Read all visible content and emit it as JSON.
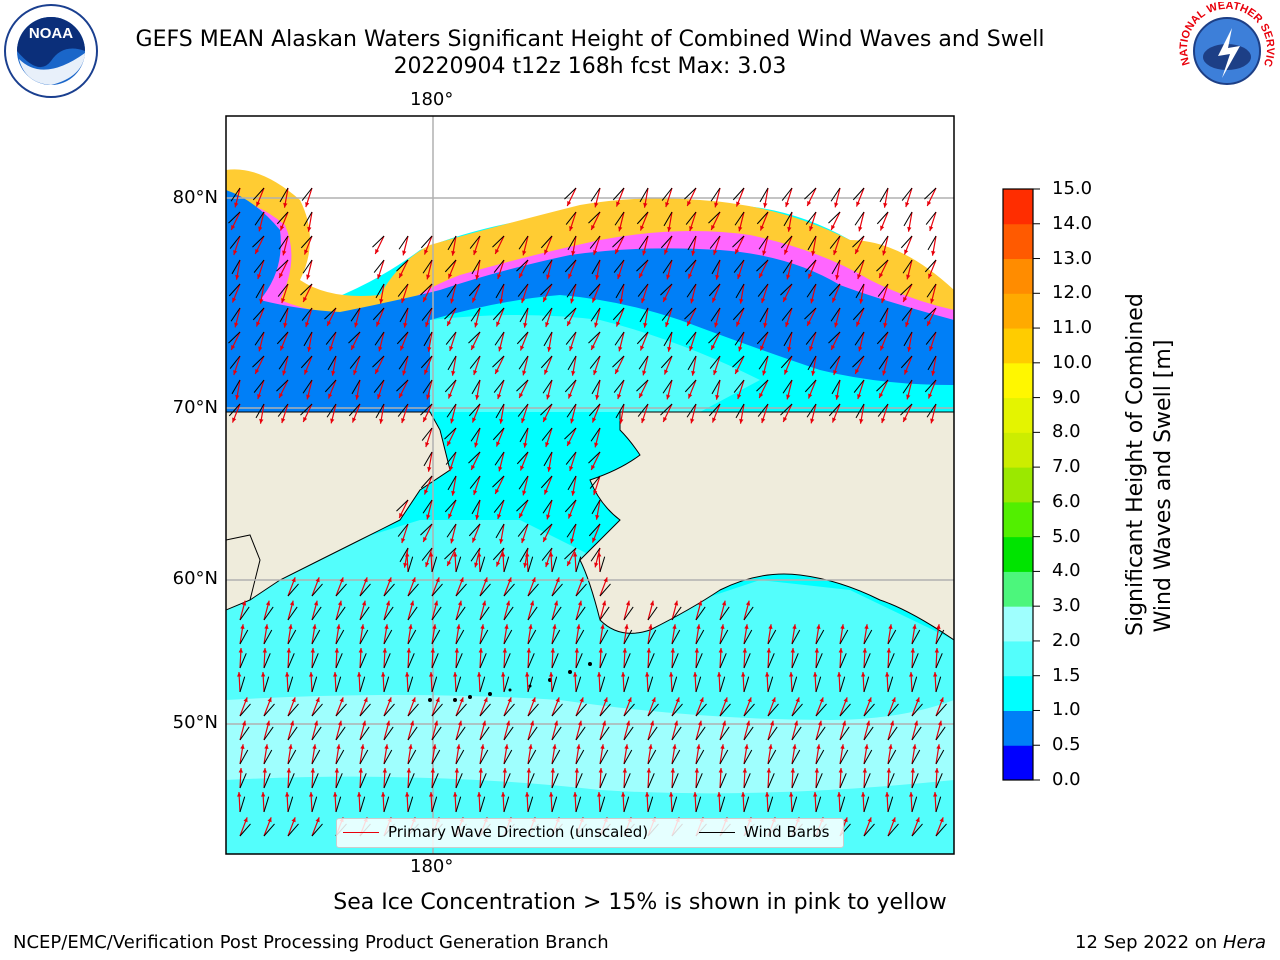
{
  "title": {
    "line1": "GEFS MEAN Alaskan Waters Significant Height of Combined Wind Waves and Swell",
    "line2": "20220904 t12z 168h fcst   Max: 3.03"
  },
  "logos": {
    "noaa_text": "NOAA",
    "nws_text": "NATIONAL WEATHER SERVICE"
  },
  "map": {
    "lon_label_top": "180°",
    "lon_label_bottom": "180°",
    "lat_labels": [
      "80°N",
      "70°N",
      "60°N",
      "50°N"
    ],
    "colors": {
      "land": "#efecdc",
      "ocean_low": "#00ffff",
      "ocean_mid": "#53fefc",
      "ocean_high": "#9ffffe",
      "ocean_dark": "#007ff7",
      "ice_pink": "#ff66ff",
      "ice_yellow": "#ffcc33",
      "wave_arrow": "#e8000b",
      "wind_barb": "#000000",
      "grid": "#b0b0b0"
    }
  },
  "legend": {
    "wave": "Primary Wave Direction (unscaled)",
    "wind": "Wind Barbs"
  },
  "colorbar": {
    "label_line1": "Significant Height of Combined",
    "label_line2": "Wind Waves and Swell [m]",
    "ticks": [
      "0.0",
      "0.5",
      "1.0",
      "1.5",
      "2.0",
      "3.0",
      "4.0",
      "5.0",
      "6.0",
      "7.0",
      "8.0",
      "9.0",
      "10.0",
      "11.0",
      "12.0",
      "13.0",
      "14.0",
      "15.0"
    ],
    "colors": [
      "#0000ff",
      "#007ff7",
      "#00ffff",
      "#53fefc",
      "#9ffffe",
      "#4cf67c",
      "#00e400",
      "#52ef00",
      "#9be800",
      "#cced00",
      "#e4f400",
      "#fff700",
      "#ffcc00",
      "#ffaa00",
      "#ff8c00",
      "#ff5a00",
      "#ff2d00"
    ]
  },
  "note": "Sea Ice Concentration > 15% is shown in pink to yellow",
  "footer": {
    "left": "NCEP/EMC/Verification Post Processing Product Generation Branch",
    "date": "12 Sep 2022 on ",
    "machine": "Hera"
  }
}
